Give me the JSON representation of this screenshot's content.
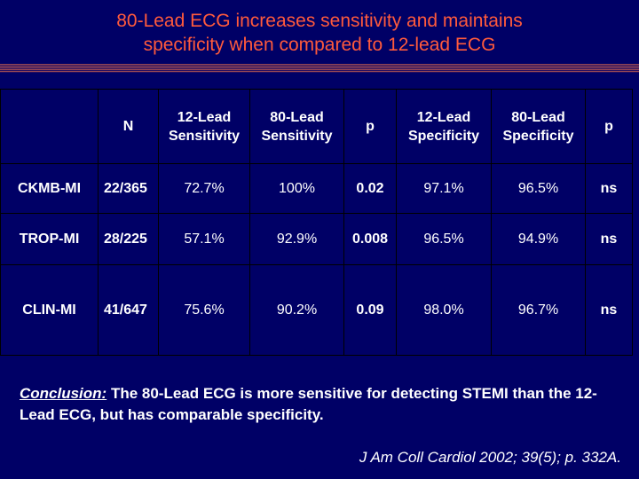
{
  "title": {
    "line1": "80-Lead ECG increases sensitivity and maintains",
    "line2": "specificity when compared to 12-lead ECG"
  },
  "table": {
    "headers": {
      "n": "N",
      "sens12": [
        "12-Lead",
        "Sensitivity"
      ],
      "sens80": [
        "80-Lead",
        "Sensitivity"
      ],
      "p1": "p",
      "spec12": [
        "12-Lead",
        "Specificity"
      ],
      "spec80": [
        "80-Lead",
        "Specificity"
      ],
      "p2": "p"
    },
    "rows": [
      {
        "label": "CKMB-MI",
        "n": "22/365",
        "sens12": "72.7%",
        "sens80": "100%",
        "p1": "0.02",
        "spec12": "97.1%",
        "spec80": "96.5%",
        "p2": "ns"
      },
      {
        "label": "TROP-MI",
        "n": "28/225",
        "sens12": "57.1%",
        "sens80": "92.9%",
        "p1": "0.008",
        "spec12": "96.5%",
        "spec80": "94.9%",
        "p2": "ns"
      },
      {
        "label": "CLIN-MI",
        "n": "41/647",
        "sens12": "75.6%",
        "sens80": "90.2%",
        "p1": "0.09",
        "spec12": "98.0%",
        "spec80": "96.7%",
        "p2": "ns"
      }
    ]
  },
  "conclusion": {
    "lead": "Conclusion:",
    "text": " The 80-Lead ECG is more sensitive for detecting STEMI than the 12-Lead ECG, but has comparable specificity."
  },
  "citation": "J Am Coll Cardiol 2002; 39(5); p. 332A.",
  "colors": {
    "background": "#000066",
    "title": "#ff5a3c",
    "text": "#ffffff"
  }
}
